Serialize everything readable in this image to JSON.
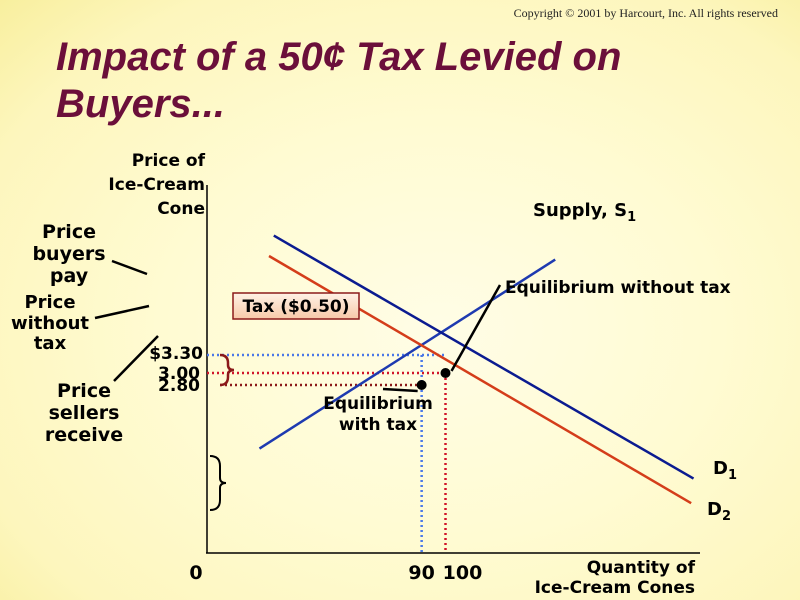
{
  "copyright": "Copyright © 2001  by Harcourt, Inc. All rights reserved",
  "title": "Impact of a 50¢ Tax Levied on Buyers...",
  "chart_data": {
    "type": "line",
    "ylabel_lines": [
      "Price of",
      "Ice-Cream",
      "Cone"
    ],
    "xlabel_lines": [
      "Quantity of",
      "Ice-Cream Cones"
    ],
    "origin_label": "0",
    "x_ticks": [
      {
        "value": 90,
        "label": "90"
      },
      {
        "value": 100,
        "label": "100"
      }
    ],
    "y_ticks": [
      {
        "value": 3.3,
        "label": "$3.30"
      },
      {
        "value": 3.0,
        "label": "3.00"
      },
      {
        "value": 2.8,
        "label": "2.80"
      }
    ],
    "xlim": [
      0,
      200
    ],
    "ylim": [
      0,
      6.0
    ],
    "series": [
      {
        "name": "Supply, S1",
        "label_main": "Supply, S",
        "label_sub": "1",
        "color": "#1e3ab0",
        "x": [
          22,
          146
        ],
        "y": [
          1.74,
          4.89
        ]
      },
      {
        "name": "D1",
        "label_main": "D",
        "label_sub": "1",
        "color": "#0b1b90",
        "x": [
          28,
          204
        ],
        "y": [
          5.29,
          1.24
        ]
      },
      {
        "name": "D2",
        "label_main": "D",
        "label_sub": "2",
        "color": "#d43d1a",
        "x": [
          26,
          203
        ],
        "y": [
          4.95,
          0.83
        ]
      }
    ],
    "equilibria": [
      {
        "label": "Equilibrium without tax",
        "x": 100,
        "y": 3.0
      },
      {
        "label_lines": [
          "Equilibrium",
          "with tax"
        ],
        "x": 90,
        "y": 2.8
      }
    ],
    "tax_label": "Tax ($0.50)",
    "left_annotations": [
      {
        "lines": [
          "Price",
          "buyers",
          "pay"
        ]
      },
      {
        "lines": [
          "Price",
          "without",
          "tax"
        ]
      },
      {
        "lines": [
          "Price",
          "sellers",
          "receive"
        ]
      }
    ],
    "guide_colors": {
      "blue": "#4a78e8",
      "red": "#d0152a",
      "brace": "#8b1a1a"
    }
  }
}
